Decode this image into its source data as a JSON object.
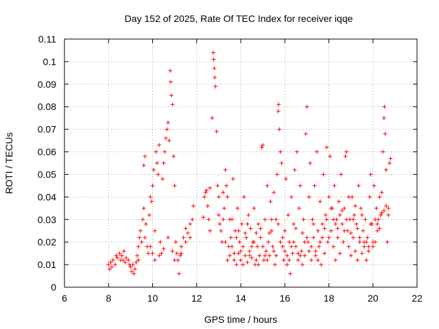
{
  "chart_data": {
    "type": "scatter",
    "title": "Day 152 of 2025, Rate Of TEC Index for receiver iqqe",
    "xlabel": "GPS time / hours",
    "ylabel": "ROTI / TECUs",
    "xlim": [
      6,
      22
    ],
    "ylim": [
      0,
      0.11
    ],
    "x_ticks": [
      "6",
      "8",
      "10",
      "12",
      "14",
      "16",
      "18",
      "20",
      "22"
    ],
    "y_ticks": [
      "0",
      "0.01",
      "0.02",
      "0.03",
      "0.04",
      "0.05",
      "0.06",
      "0.07",
      "0.08",
      "0.09",
      "0.1",
      "0.11"
    ],
    "grid": true,
    "marker": "plus",
    "series_color": "#ff0000",
    "points": [
      [
        8.0,
        0.01
      ],
      [
        8.05,
        0.008
      ],
      [
        8.1,
        0.011
      ],
      [
        8.15,
        0.009
      ],
      [
        8.2,
        0.012
      ],
      [
        8.3,
        0.01
      ],
      [
        8.4,
        0.013
      ],
      [
        8.5,
        0.015
      ],
      [
        8.55,
        0.012
      ],
      [
        8.6,
        0.014
      ],
      [
        8.7,
        0.016
      ],
      [
        8.75,
        0.011
      ],
      [
        8.8,
        0.013
      ],
      [
        8.9,
        0.012
      ],
      [
        9.0,
        0.009
      ],
      [
        9.05,
        0.007
      ],
      [
        9.1,
        0.01
      ],
      [
        9.15,
        0.006
      ],
      [
        9.2,
        0.008
      ],
      [
        9.25,
        0.011
      ],
      [
        9.3,
        0.014
      ],
      [
        9.35,
        0.018
      ],
      [
        9.4,
        0.022
      ],
      [
        9.45,
        0.025
      ],
      [
        9.5,
        0.02
      ],
      [
        9.55,
        0.03
      ],
      [
        9.6,
        0.035
      ],
      [
        9.6,
        0.054
      ],
      [
        9.65,
        0.058
      ],
      [
        9.7,
        0.028
      ],
      [
        9.75,
        0.018
      ],
      [
        9.8,
        0.015
      ],
      [
        9.85,
        0.032
      ],
      [
        9.9,
        0.04
      ],
      [
        9.95,
        0.038
      ],
      [
        10.0,
        0.045
      ],
      [
        10.0,
        0.015
      ],
      [
        10.05,
        0.052
      ],
      [
        10.1,
        0.012
      ],
      [
        10.15,
        0.06
      ],
      [
        10.2,
        0.055
      ],
      [
        10.25,
        0.05
      ],
      [
        10.3,
        0.063
      ],
      [
        10.35,
        0.02
      ],
      [
        10.4,
        0.015
      ],
      [
        10.45,
        0.048
      ],
      [
        10.5,
        0.055
      ],
      [
        10.55,
        0.06
      ],
      [
        10.6,
        0.066
      ],
      [
        10.65,
        0.07
      ],
      [
        10.7,
        0.073
      ],
      [
        10.75,
        0.065
      ],
      [
        10.8,
        0.096
      ],
      [
        10.82,
        0.091
      ],
      [
        10.85,
        0.085
      ],
      [
        10.9,
        0.081
      ],
      [
        10.95,
        0.058
      ],
      [
        11.0,
        0.045
      ],
      [
        11.05,
        0.02
      ],
      [
        11.1,
        0.015
      ],
      [
        11.15,
        0.012
      ],
      [
        11.2,
        0.006
      ],
      [
        11.25,
        0.014
      ],
      [
        11.3,
        0.018
      ],
      [
        11.4,
        0.022
      ],
      [
        11.5,
        0.026
      ],
      [
        11.6,
        0.024
      ],
      [
        11.7,
        0.028
      ],
      [
        11.8,
        0.03
      ],
      [
        11.85,
        0.036
      ],
      [
        12.3,
        0.031
      ],
      [
        12.35,
        0.04
      ],
      [
        12.4,
        0.042
      ],
      [
        12.45,
        0.043
      ],
      [
        12.5,
        0.036
      ],
      [
        12.55,
        0.03
      ],
      [
        12.6,
        0.025
      ],
      [
        12.7,
        0.075
      ],
      [
        12.75,
        0.104
      ],
      [
        12.77,
        0.101
      ],
      [
        12.8,
        0.097
      ],
      [
        12.82,
        0.093
      ],
      [
        12.85,
        0.089
      ],
      [
        12.9,
        0.069
      ],
      [
        12.95,
        0.045
      ],
      [
        13.0,
        0.032
      ],
      [
        13.05,
        0.028
      ],
      [
        13.1,
        0.025
      ],
      [
        13.15,
        0.02
      ],
      [
        13.2,
        0.03
      ],
      [
        13.25,
        0.035
      ],
      [
        13.3,
        0.052
      ],
      [
        13.35,
        0.045
      ],
      [
        13.4,
        0.04
      ],
      [
        13.45,
        0.018
      ],
      [
        13.5,
        0.014
      ],
      [
        13.55,
        0.022
      ],
      [
        13.6,
        0.03
      ],
      [
        13.65,
        0.048
      ],
      [
        13.7,
        0.012
      ],
      [
        13.75,
        0.025
      ],
      [
        13.8,
        0.01
      ],
      [
        13.85,
        0.035
      ],
      [
        13.9,
        0.015
      ],
      [
        13.95,
        0.02
      ],
      [
        14.0,
        0.012
      ],
      [
        14.05,
        0.028
      ],
      [
        14.1,
        0.018
      ],
      [
        14.15,
        0.04
      ],
      [
        14.2,
        0.014
      ],
      [
        14.25,
        0.022
      ],
      [
        14.3,
        0.011
      ],
      [
        14.35,
        0.032
      ],
      [
        14.4,
        0.016
      ],
      [
        14.45,
        0.026
      ],
      [
        14.5,
        0.013
      ],
      [
        14.55,
        0.02
      ],
      [
        14.6,
        0.035
      ],
      [
        14.65,
        0.01
      ],
      [
        14.7,
        0.024
      ],
      [
        14.75,
        0.018
      ],
      [
        14.8,
        0.028
      ],
      [
        14.85,
        0.014
      ],
      [
        14.9,
        0.022
      ],
      [
        14.95,
        0.062
      ],
      [
        15.0,
        0.063
      ],
      [
        15.05,
        0.012
      ],
      [
        15.1,
        0.03
      ],
      [
        15.15,
        0.016
      ],
      [
        15.2,
        0.045
      ],
      [
        15.25,
        0.02
      ],
      [
        15.3,
        0.014
      ],
      [
        15.35,
        0.038
      ],
      [
        15.4,
        0.025
      ],
      [
        15.45,
        0.018
      ],
      [
        15.5,
        0.042
      ],
      [
        15.55,
        0.01
      ],
      [
        15.6,
        0.03
      ],
      [
        15.65,
        0.05
      ],
      [
        15.7,
        0.078
      ],
      [
        15.72,
        0.081
      ],
      [
        15.75,
        0.07
      ],
      [
        15.8,
        0.06
      ],
      [
        15.85,
        0.055
      ],
      [
        15.9,
        0.018
      ],
      [
        15.95,
        0.012
      ],
      [
        16.0,
        0.025
      ],
      [
        16.05,
        0.048
      ],
      [
        16.1,
        0.014
      ],
      [
        16.15,
        0.032
      ],
      [
        16.2,
        0.02
      ],
      [
        16.25,
        0.006
      ],
      [
        16.3,
        0.04
      ],
      [
        16.35,
        0.015
      ],
      [
        16.4,
        0.028
      ],
      [
        16.45,
        0.052
      ],
      [
        16.5,
        0.018
      ],
      [
        16.55,
        0.06
      ],
      [
        16.6,
        0.012
      ],
      [
        16.65,
        0.035
      ],
      [
        16.7,
        0.045
      ],
      [
        16.75,
        0.016
      ],
      [
        16.8,
        0.024
      ],
      [
        16.85,
        0.03
      ],
      [
        16.9,
        0.014
      ],
      [
        16.95,
        0.068
      ],
      [
        17.0,
        0.08
      ],
      [
        17.05,
        0.02
      ],
      [
        17.1,
        0.04
      ],
      [
        17.15,
        0.055
      ],
      [
        17.2,
        0.012
      ],
      [
        17.25,
        0.03
      ],
      [
        17.3,
        0.022
      ],
      [
        17.35,
        0.045
      ],
      [
        17.4,
        0.016
      ],
      [
        17.45,
        0.06
      ],
      [
        17.5,
        0.025
      ],
      [
        17.55,
        0.018
      ],
      [
        17.6,
        0.038
      ],
      [
        17.65,
        0.01
      ],
      [
        17.7,
        0.028
      ],
      [
        17.75,
        0.05
      ],
      [
        17.8,
        0.015
      ],
      [
        17.85,
        0.032
      ],
      [
        17.9,
        0.062
      ],
      [
        17.95,
        0.02
      ],
      [
        18.0,
        0.04
      ],
      [
        18.05,
        0.058
      ],
      [
        18.1,
        0.025
      ],
      [
        18.15,
        0.035
      ],
      [
        18.2,
        0.018
      ],
      [
        18.25,
        0.045
      ],
      [
        18.3,
        0.012
      ],
      [
        18.35,
        0.03
      ],
      [
        18.4,
        0.022
      ],
      [
        18.45,
        0.038
      ],
      [
        18.5,
        0.015
      ],
      [
        18.55,
        0.05
      ],
      [
        18.6,
        0.028
      ],
      [
        18.65,
        0.02
      ],
      [
        18.7,
        0.035
      ],
      [
        18.75,
        0.058
      ],
      [
        18.8,
        0.06
      ],
      [
        18.85,
        0.025
      ],
      [
        18.9,
        0.018
      ],
      [
        18.95,
        0.03
      ],
      [
        19.0,
        0.014
      ],
      [
        19.05,
        0.04
      ],
      [
        19.1,
        0.022
      ],
      [
        19.15,
        0.032
      ],
      [
        19.2,
        0.016
      ],
      [
        19.25,
        0.028
      ],
      [
        19.3,
        0.012
      ],
      [
        19.35,
        0.045
      ],
      [
        19.4,
        0.02
      ],
      [
        19.45,
        0.035
      ],
      [
        19.5,
        0.015
      ],
      [
        19.55,
        0.025
      ],
      [
        19.6,
        0.018
      ],
      [
        19.65,
        0.03
      ],
      [
        19.7,
        0.012
      ],
      [
        19.75,
        0.022
      ],
      [
        19.8,
        0.016
      ],
      [
        19.85,
        0.04
      ],
      [
        19.9,
        0.05
      ],
      [
        19.95,
        0.028
      ],
      [
        20.0,
        0.018
      ],
      [
        20.05,
        0.045
      ],
      [
        20.1,
        0.02
      ],
      [
        20.15,
        0.035
      ],
      [
        20.2,
        0.025
      ],
      [
        20.25,
        0.03
      ],
      [
        20.3,
        0.04
      ],
      [
        20.35,
        0.032
      ],
      [
        20.4,
        0.042
      ],
      [
        20.45,
        0.06
      ],
      [
        20.5,
        0.075
      ],
      [
        20.52,
        0.08
      ],
      [
        20.55,
        0.068
      ],
      [
        20.6,
        0.052
      ],
      [
        20.65,
        0.02
      ],
      [
        20.7,
        0.035
      ],
      [
        20.75,
        0.055
      ],
      [
        20.8,
        0.057
      ],
      [
        13.3,
        0.02
      ],
      [
        13.5,
        0.03
      ],
      [
        13.7,
        0.015
      ],
      [
        13.9,
        0.025
      ],
      [
        14.1,
        0.01
      ],
      [
        14.3,
        0.028
      ],
      [
        14.5,
        0.018
      ],
      [
        14.7,
        0.012
      ],
      [
        14.9,
        0.026
      ],
      [
        15.1,
        0.014
      ],
      [
        15.3,
        0.024
      ],
      [
        15.5,
        0.016
      ],
      [
        15.7,
        0.028
      ],
      [
        15.9,
        0.022
      ],
      [
        16.1,
        0.01
      ],
      [
        16.3,
        0.018
      ],
      [
        16.5,
        0.026
      ],
      [
        16.7,
        0.014
      ],
      [
        16.9,
        0.02
      ],
      [
        17.1,
        0.016
      ],
      [
        17.3,
        0.028
      ],
      [
        17.5,
        0.012
      ],
      [
        17.7,
        0.022
      ],
      [
        17.9,
        0.03
      ],
      [
        18.1,
        0.035
      ],
      [
        18.3,
        0.028
      ],
      [
        18.5,
        0.032
      ],
      [
        18.7,
        0.025
      ],
      [
        18.9,
        0.04
      ],
      [
        19.1,
        0.03
      ],
      [
        19.3,
        0.026
      ],
      [
        19.5,
        0.032
      ],
      [
        19.7,
        0.02
      ],
      [
        19.9,
        0.028
      ],
      [
        20.1,
        0.03
      ],
      [
        20.3,
        0.026
      ],
      [
        20.5,
        0.034
      ],
      [
        20.7,
        0.032
      ],
      [
        13.4,
        0.012
      ],
      [
        13.6,
        0.018
      ],
      [
        13.8,
        0.022
      ],
      [
        14.0,
        0.016
      ],
      [
        14.2,
        0.024
      ],
      [
        14.4,
        0.014
      ],
      [
        14.6,
        0.02
      ],
      [
        14.8,
        0.01
      ],
      [
        15.0,
        0.018
      ],
      [
        15.2,
        0.012
      ],
      [
        15.4,
        0.03
      ],
      [
        15.6,
        0.014
      ],
      [
        15.8,
        0.02
      ],
      [
        16.0,
        0.016
      ],
      [
        16.2,
        0.012
      ],
      [
        16.4,
        0.02
      ],
      [
        16.6,
        0.015
      ],
      [
        16.8,
        0.01
      ],
      [
        17.0,
        0.022
      ],
      [
        17.2,
        0.018
      ],
      [
        17.4,
        0.014
      ],
      [
        17.6,
        0.02
      ],
      [
        17.8,
        0.026
      ],
      [
        18.0,
        0.022
      ],
      [
        18.2,
        0.03
      ],
      [
        18.4,
        0.026
      ],
      [
        18.6,
        0.034
      ],
      [
        18.8,
        0.03
      ],
      [
        19.0,
        0.024
      ],
      [
        19.2,
        0.036
      ],
      [
        19.4,
        0.022
      ],
      [
        19.6,
        0.02
      ],
      [
        19.8,
        0.018
      ],
      [
        20.0,
        0.02
      ],
      [
        20.2,
        0.028
      ],
      [
        20.4,
        0.033
      ],
      [
        20.6,
        0.036
      ],
      [
        8.35,
        0.014
      ],
      [
        8.65,
        0.012
      ],
      [
        8.95,
        0.01
      ],
      [
        9.35,
        0.012
      ],
      [
        9.65,
        0.022
      ],
      [
        9.9,
        0.018
      ],
      [
        10.1,
        0.025
      ],
      [
        10.3,
        0.014
      ],
      [
        10.5,
        0.017
      ],
      [
        10.7,
        0.022
      ],
      [
        10.9,
        0.016
      ],
      [
        11.0,
        0.012
      ],
      [
        11.3,
        0.015
      ],
      [
        11.5,
        0.02
      ],
      [
        11.7,
        0.022
      ],
      [
        12.6,
        0.044
      ],
      [
        13.0,
        0.04
      ],
      [
        13.2,
        0.042
      ]
    ]
  }
}
